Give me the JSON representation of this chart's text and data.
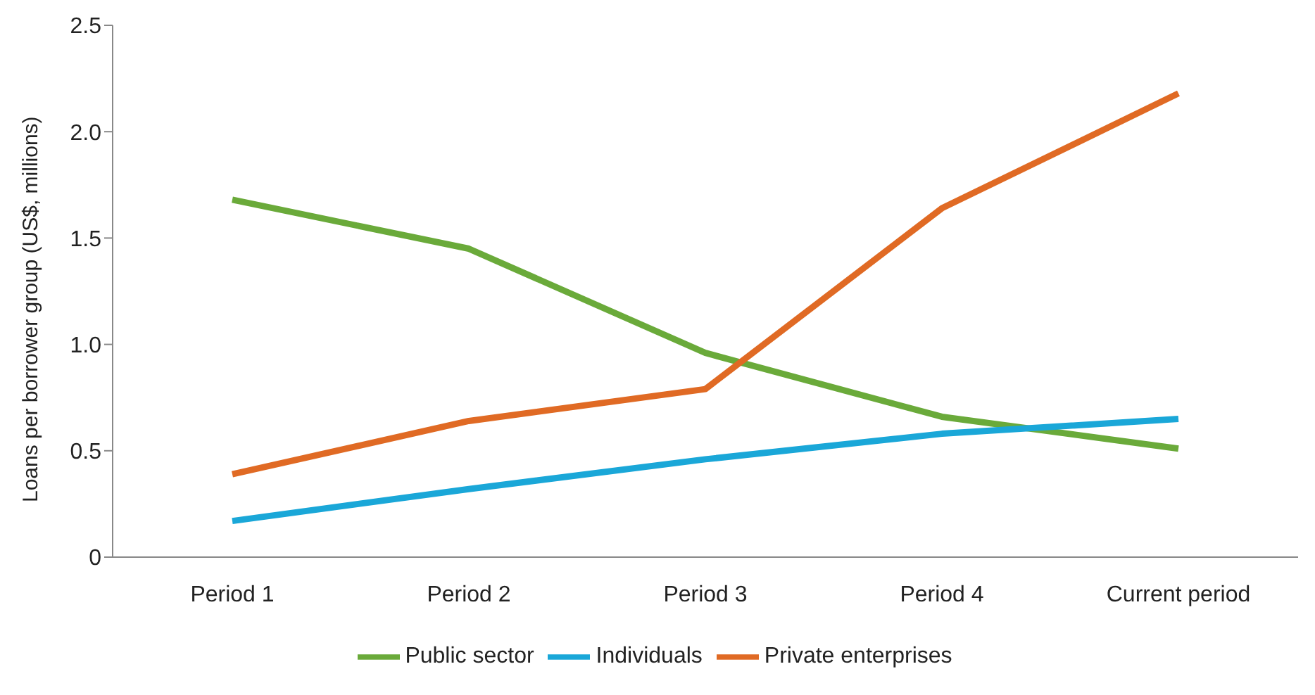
{
  "chart_data": {
    "type": "line",
    "ylabel": "Loans per borrower group (US$, millions)",
    "categories": [
      "Period 1",
      "Period 2",
      "Period 3",
      "Period 4",
      "Current period"
    ],
    "series": [
      {
        "name": "Public sector",
        "color": "#6aaa3a",
        "values": [
          1.68,
          1.45,
          0.96,
          0.66,
          0.51
        ]
      },
      {
        "name": "Individuals",
        "color": "#1aa7d8",
        "values": [
          0.17,
          0.32,
          0.46,
          0.58,
          0.65
        ]
      },
      {
        "name": "Private enterprises",
        "color": "#e06a24",
        "values": [
          0.39,
          0.64,
          0.79,
          1.64,
          2.18
        ]
      }
    ],
    "ylim": [
      0,
      2.5
    ],
    "yticks": [
      0,
      0.5,
      {
        "value": 1,
        "label": "1.0"
      },
      1.5,
      {
        "value": 2,
        "label": "2.0"
      },
      2.5
    ],
    "grid": false,
    "legend": "bottom",
    "marker": "none",
    "line_style": "solid"
  }
}
